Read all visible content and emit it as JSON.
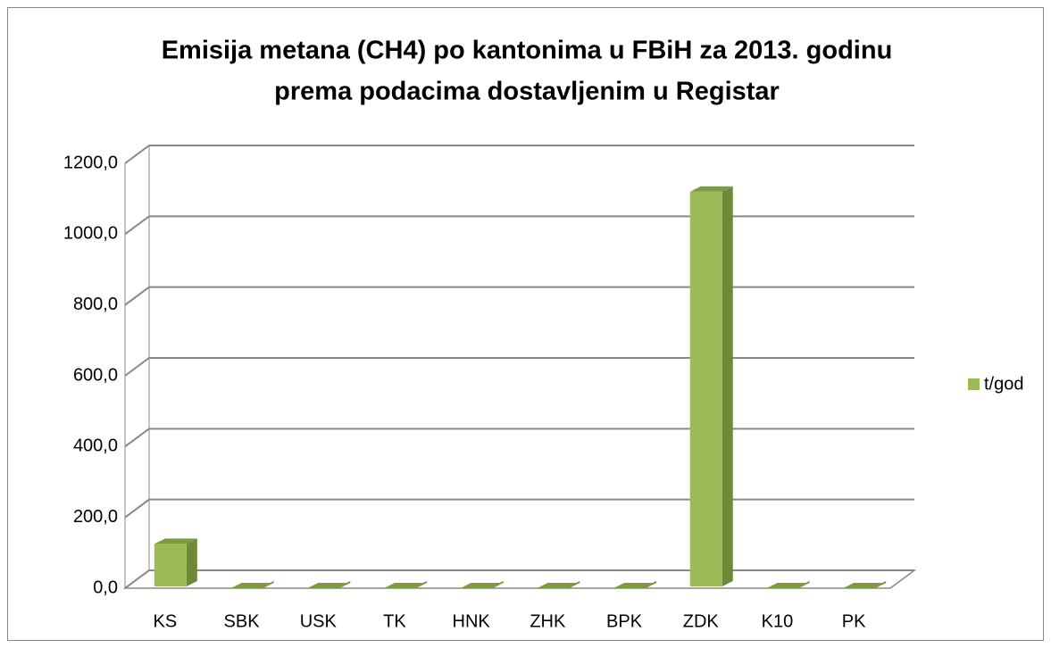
{
  "chart_data": {
    "type": "bar3d",
    "title": "Emisija metana (CH4) po kantonima u FBiH za 2013. godinu",
    "subtitle": "prema podacima dostavljenim u Registar",
    "categories": [
      "KS",
      "SBK",
      "USK",
      "TK",
      "HNK",
      "ZHK",
      "BPK",
      "ZDK",
      "K10",
      "PK"
    ],
    "series": [
      {
        "name": "t/god",
        "color": "#9bbb59",
        "values": [
          125,
          0,
          0,
          0,
          0,
          0,
          0,
          1120,
          0,
          0
        ]
      }
    ],
    "ylim": [
      0,
      1200
    ],
    "yticks": [
      {
        "value": 0,
        "label": "0,0"
      },
      {
        "value": 200,
        "label": "200,0"
      },
      {
        "value": 400,
        "label": "400,0"
      },
      {
        "value": 600,
        "label": "600,0"
      },
      {
        "value": 800,
        "label": "800,0"
      },
      {
        "value": 1000,
        "label": "1000,0"
      },
      {
        "value": 1200,
        "label": "1200,0"
      }
    ],
    "grid": true,
    "legend": "right"
  }
}
